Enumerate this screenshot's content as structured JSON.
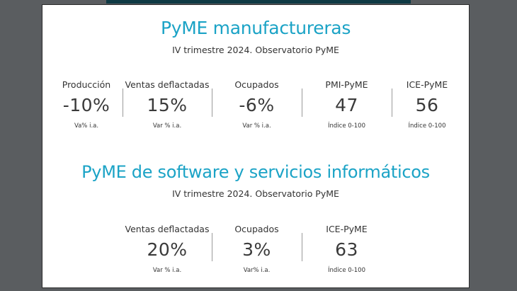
{
  "section1": {
    "title": "PyME manufactureras",
    "subtitle": "IV trimestre 2024. Observatorio PyME",
    "stats": [
      {
        "label": "Producción",
        "value": "-10%",
        "unit": "Va% i.a."
      },
      {
        "label": "Ventas deflactadas",
        "value": "15%",
        "unit": "Var % i.a."
      },
      {
        "label": "Ocupados",
        "value": "-6%",
        "unit": "Var % i.a."
      },
      {
        "label": "PMI-PyME",
        "value": "47",
        "unit": "Índice 0-100"
      },
      {
        "label": "ICE-PyME",
        "value": "56",
        "unit": "Índice 0-100"
      }
    ]
  },
  "section2": {
    "title": "PyME de software y servicios informáticos",
    "subtitle": "IV trimestre 2024. Observatorio PyME",
    "stats": [
      {
        "label": "Ventas deflactadas",
        "value": "20%",
        "unit": "Var % i.a."
      },
      {
        "label": "Ocupados",
        "value": "3%",
        "unit": "Var% i.a."
      },
      {
        "label": "ICE-PyME",
        "value": "63",
        "unit": "Índice 0-100"
      }
    ]
  },
  "colors": {
    "title": "#1ba3c6",
    "text": "#333333",
    "background": "#5a5d60",
    "card": "#ffffff"
  }
}
